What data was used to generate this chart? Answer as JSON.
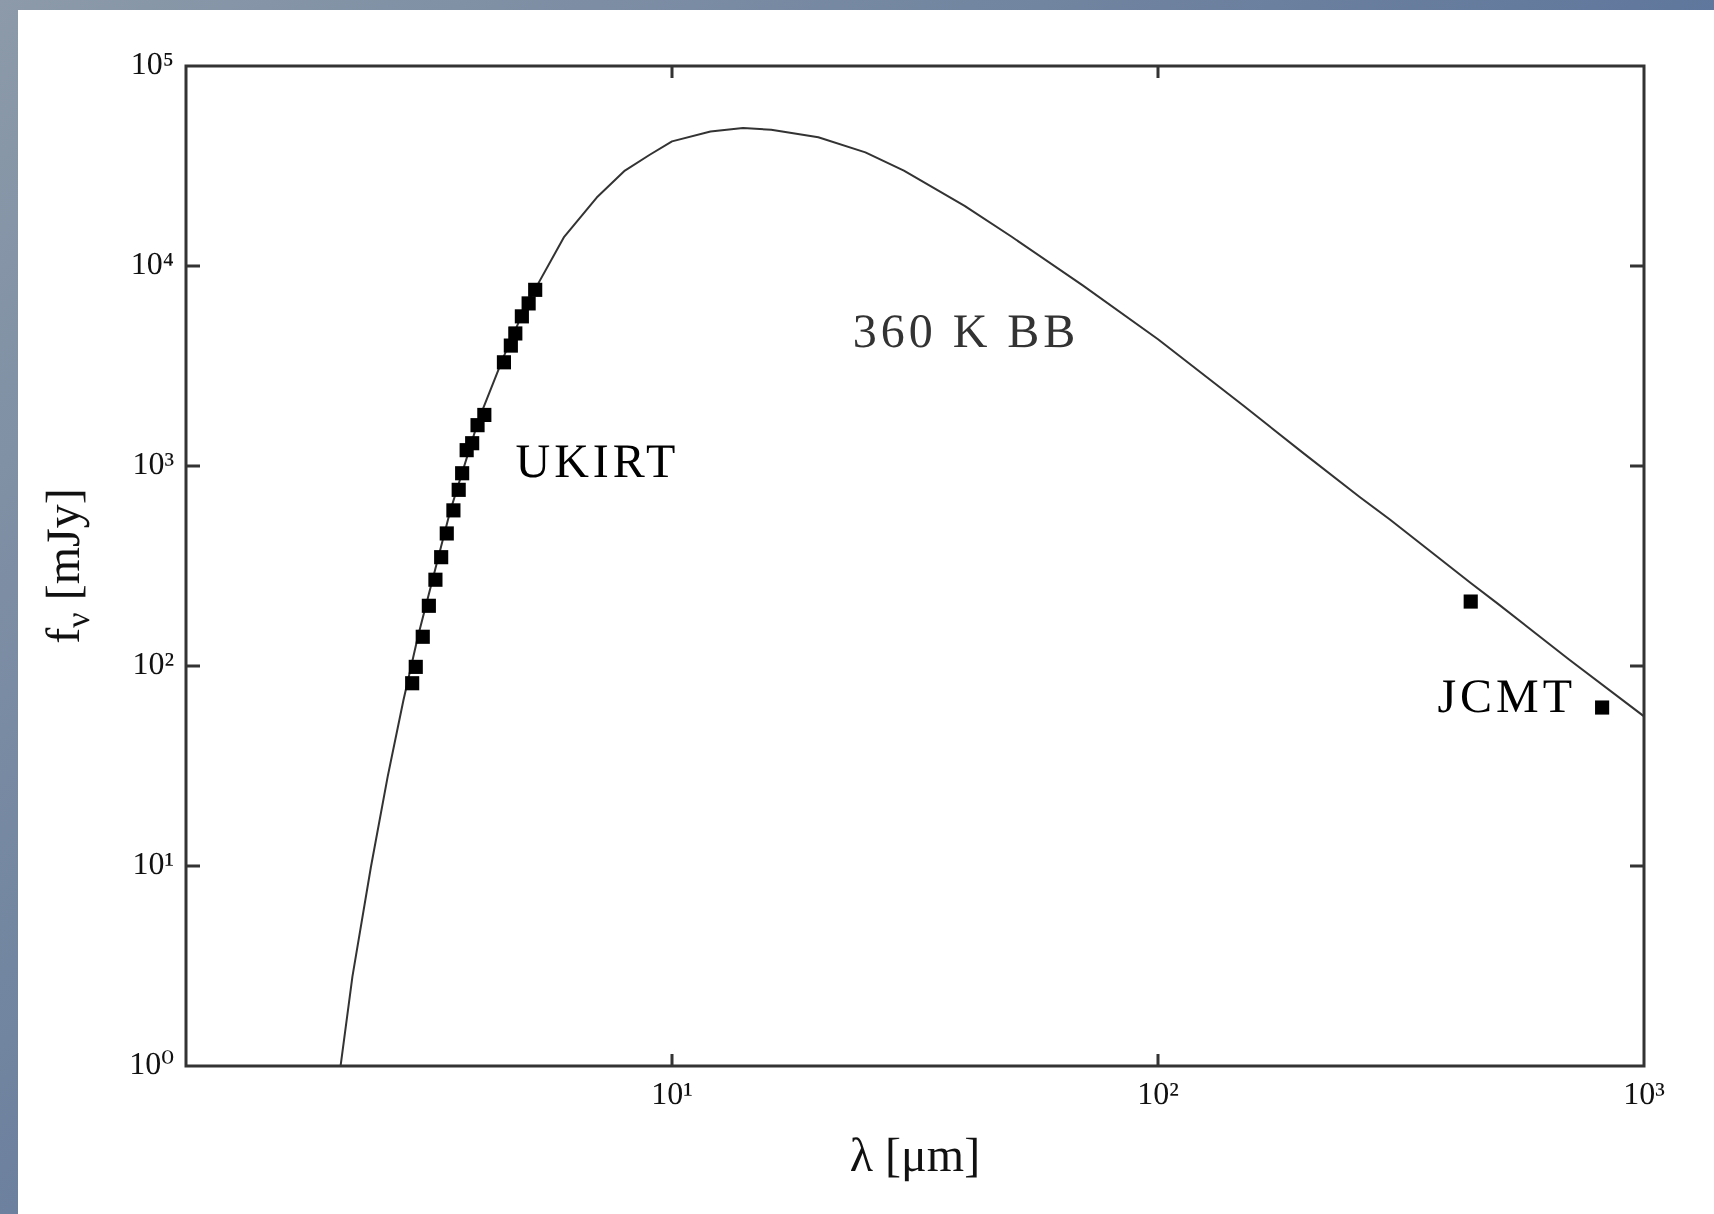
{
  "chart_data": {
    "type": "scatter",
    "xlabel": "λ [μm]",
    "ylabel": "f$_{ν}$ [mJy]",
    "log": "xy",
    "xlim": [
      1,
      1000
    ],
    "ylim": [
      1,
      100000
    ],
    "xticks": [
      {
        "value": 10,
        "label": "10¹"
      },
      {
        "value": 100,
        "label": "10²"
      },
      {
        "value": 1000,
        "label": "10³"
      }
    ],
    "yticks": [
      {
        "value": 1,
        "label": "10⁰"
      },
      {
        "value": 10,
        "label": "10¹"
      },
      {
        "value": 100,
        "label": "10²"
      },
      {
        "value": 1000,
        "label": "10³"
      },
      {
        "value": 10000,
        "label": "10⁴"
      },
      {
        "value": 100000,
        "label": "10⁵"
      }
    ],
    "marker": "square",
    "series": [
      {
        "name": "360 K BB",
        "type": "line",
        "marker": "none",
        "color": "#333333",
        "x": [
          2.08,
          2.2,
          2.4,
          2.6,
          2.8,
          3.0,
          3.5,
          4,
          4.5,
          5,
          6,
          7,
          8,
          9,
          10,
          12,
          14,
          16,
          20,
          25,
          30,
          40,
          50,
          70,
          100,
          150,
          200,
          260,
          300,
          440,
          500,
          700,
          1000
        ],
        "values": [
          1.0,
          2.8,
          9.8,
          28,
          67,
          140,
          600,
          1700,
          3500,
          6300,
          14000,
          22000,
          30000,
          36000,
          42000,
          47000,
          49000,
          48000,
          44000,
          37000,
          30000,
          20000,
          14000,
          8000,
          4300,
          2000,
          1150,
          700,
          540,
          260,
          205,
          108,
          56
        ]
      },
      {
        "name": "UKIRT",
        "color": "#000000",
        "x": [
          2.92,
          2.97,
          3.07,
          3.16,
          3.26,
          3.35,
          3.44,
          3.55,
          3.64,
          3.7,
          3.78,
          3.88,
          3.98,
          4.11,
          4.51,
          4.66,
          4.76,
          4.91,
          5.07,
          5.23
        ],
        "values": [
          82,
          99,
          140,
          200,
          270,
          350,
          460,
          600,
          760,
          920,
          1200,
          1300,
          1600,
          1800,
          3300,
          4000,
          4600,
          5600,
          6500,
          7600
        ]
      },
      {
        "name": "JCMT",
        "color": "#000000",
        "x": [
          440,
          820
        ],
        "values": [
          210,
          62
        ]
      }
    ]
  }
}
